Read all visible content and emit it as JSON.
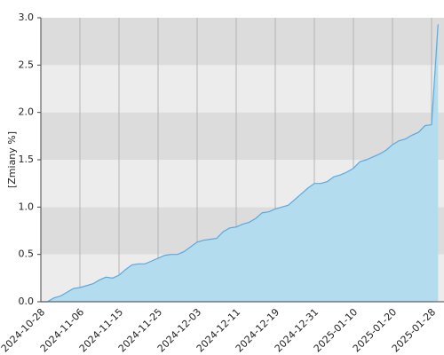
{
  "chart_data": {
    "type": "area",
    "y_label": "[Zmiany %]",
    "categories": [
      "2024-10-28",
      null,
      null,
      null,
      null,
      null,
      "2024-11-06",
      null,
      null,
      null,
      null,
      null,
      "2024-11-15",
      null,
      null,
      null,
      null,
      null,
      "2024-11-25",
      null,
      null,
      null,
      null,
      null,
      "2024-12-03",
      null,
      null,
      null,
      null,
      null,
      "2024-12-11",
      null,
      null,
      null,
      null,
      null,
      "2024-12-19",
      null,
      null,
      null,
      null,
      null,
      "2024-12-31",
      null,
      null,
      null,
      null,
      null,
      "2025-01-10",
      null,
      null,
      null,
      null,
      null,
      "2025-01-20",
      null,
      null,
      null,
      null,
      null,
      "2025-01-28",
      null
    ],
    "values": [
      0.0,
      0.0,
      0.04,
      0.06,
      0.1,
      0.14,
      0.15,
      0.17,
      0.19,
      0.23,
      0.26,
      0.25,
      0.28,
      0.34,
      0.39,
      0.4,
      0.4,
      0.43,
      0.46,
      0.49,
      0.5,
      0.5,
      0.53,
      0.58,
      0.63,
      0.65,
      0.66,
      0.67,
      0.74,
      0.78,
      0.79,
      0.82,
      0.84,
      0.88,
      0.94,
      0.95,
      0.98,
      1.0,
      1.02,
      1.08,
      1.14,
      1.2,
      1.25,
      1.25,
      1.27,
      1.32,
      1.34,
      1.37,
      1.41,
      1.48,
      1.5,
      1.53,
      1.56,
      1.6,
      1.66,
      1.7,
      1.72,
      1.76,
      1.79,
      1.86,
      1.87,
      2.93
    ],
    "color": "#5ba8e0",
    "fill": "#b3dcee",
    "band_colors": [
      "#ececec",
      "#dcdcdc"
    ],
    "ylim": [
      0,
      3
    ],
    "yticks": [
      {
        "value": 0,
        "label": "0.0"
      },
      0.5,
      {
        "value": 1,
        "label": "1.0"
      },
      1.5,
      {
        "value": 2,
        "label": "2.0"
      },
      2.5,
      {
        "value": 3,
        "label": "3.0"
      }
    ],
    "grid": true
  }
}
